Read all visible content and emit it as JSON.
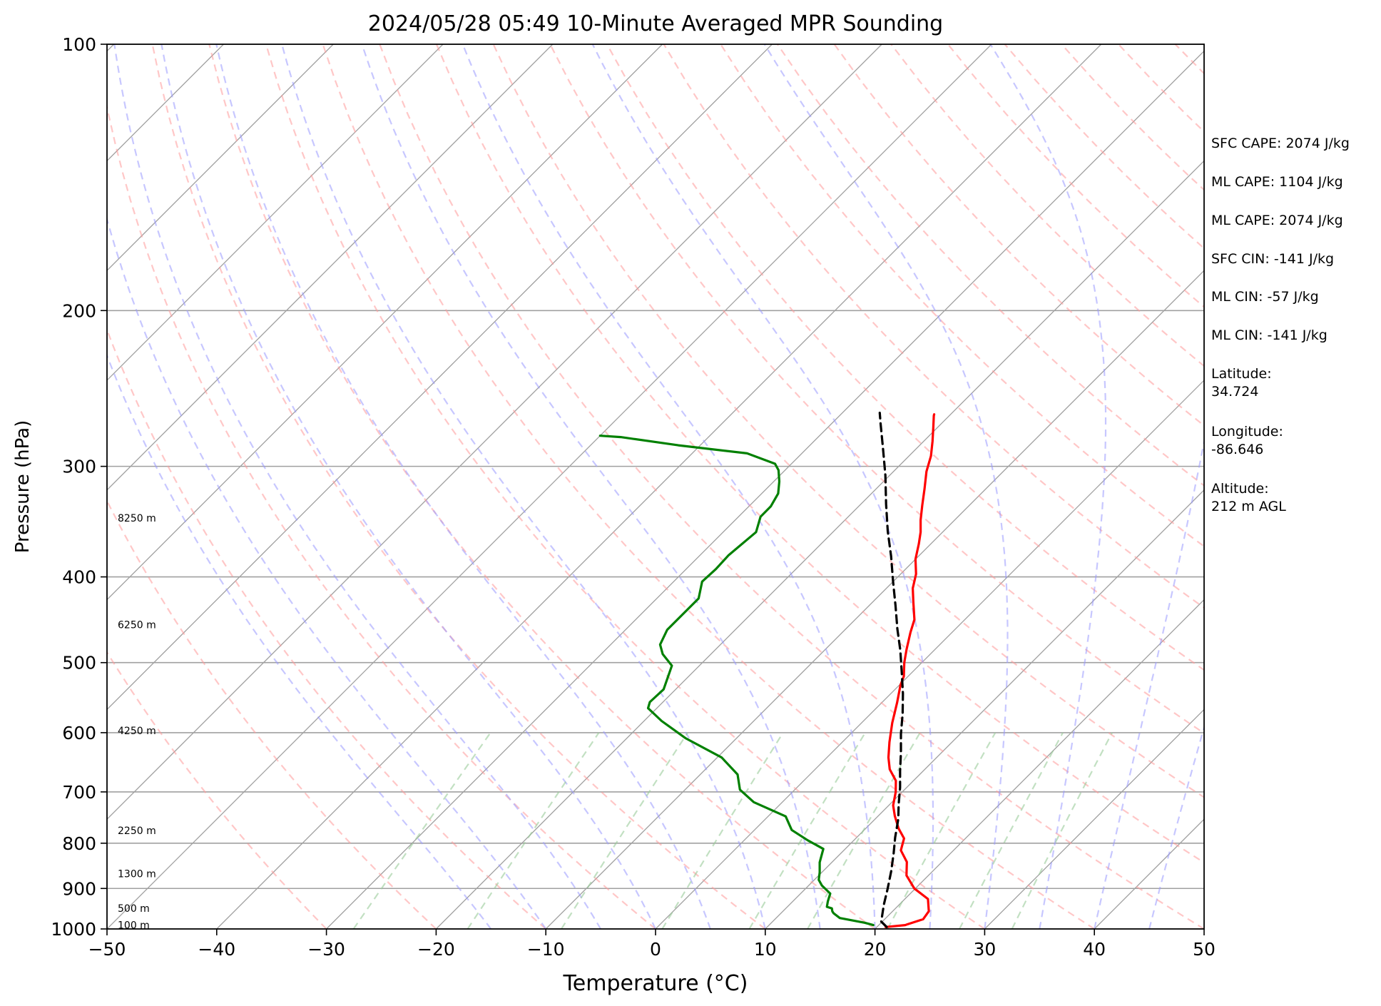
{
  "chart_data": {
    "type": "line",
    "title": "2024/05/28 05:49 10-Minute Averaged MPR Sounding",
    "xlabel": "Temperature (°C)",
    "ylabel": "Pressure (hPa)",
    "xlim": [
      -50,
      50
    ],
    "ylim": [
      1000,
      100
    ],
    "y_scale": "log",
    "skew": "skew-T",
    "grid": true,
    "x_ticks": [
      -50,
      -40,
      -30,
      -20,
      -10,
      0,
      10,
      20,
      30,
      40,
      50
    ],
    "x_tick_labels": [
      "−50",
      "−40",
      "−30",
      "−20",
      "−10",
      "0",
      "10",
      "20",
      "30",
      "40",
      "50"
    ],
    "y_ticks": [
      1000,
      900,
      800,
      700,
      600,
      500,
      400,
      300,
      200,
      100
    ],
    "y_tick_labels": [
      "1000",
      "900",
      "800",
      "700",
      "600",
      "500",
      "400",
      "300",
      "200",
      "100"
    ],
    "height_labels": [
      {
        "text": "100 m",
        "pressure": 990
      },
      {
        "text": "500 m",
        "pressure": 948
      },
      {
        "text": "1300 m",
        "pressure": 866
      },
      {
        "text": "2250 m",
        "pressure": 774
      },
      {
        "text": "4250 m",
        "pressure": 597
      },
      {
        "text": "6250 m",
        "pressure": 453
      },
      {
        "text": "8250 m",
        "pressure": 343
      }
    ],
    "colors": {
      "temperature": "#ff0000",
      "dewpoint": "#008000",
      "parcel": "#000000",
      "dry_adiabats": "#ff9999",
      "moist_adiabats": "#9999ff",
      "mixing_ratio": "#99cc99",
      "isotherms": "#a0a0a0",
      "isobars": "#a0a0a0"
    },
    "series": [
      {
        "style": "solid red",
        "points": [
          [
            20.8,
            995
          ],
          [
            22.4,
            990
          ],
          [
            23.5,
            975
          ],
          [
            23.3,
            955
          ],
          [
            22.1,
            925
          ],
          [
            19.9,
            900
          ],
          [
            18.0,
            870
          ],
          [
            16.8,
            840
          ],
          [
            15.2,
            815
          ],
          [
            14.4,
            790
          ],
          [
            13.0,
            770
          ],
          [
            11.5,
            745
          ],
          [
            10.4,
            725
          ],
          [
            9.4,
            700
          ],
          [
            8.4,
            680
          ],
          [
            6.8,
            660
          ],
          [
            5.6,
            640
          ],
          [
            4.3,
            615
          ],
          [
            2.8,
            585
          ],
          [
            1.4,
            555
          ],
          [
            0.1,
            530
          ],
          [
            -0.4,
            518
          ],
          [
            -1.6,
            500
          ],
          [
            -2.6,
            483
          ],
          [
            -3.8,
            462
          ],
          [
            -4.6,
            447
          ],
          [
            -6.3,
            427
          ],
          [
            -7.6,
            412
          ],
          [
            -8.6,
            397
          ],
          [
            -10.0,
            382
          ],
          [
            -11.1,
            367
          ],
          [
            -12.0,
            356
          ],
          [
            -13.1,
            345
          ],
          [
            -14.3,
            332
          ],
          [
            -15.6,
            318
          ],
          [
            -17.0,
            304
          ],
          [
            -18.0,
            292
          ],
          [
            -19.2,
            281
          ],
          [
            -20.4,
            271
          ],
          [
            -21.4,
            263
          ],
          [
            -21.5,
            262
          ]
        ]
      },
      {
        "style": "solid green",
        "points": [
          [
            19.5,
            990
          ],
          [
            18.5,
            984
          ],
          [
            15.8,
            972
          ],
          [
            14.8,
            960
          ],
          [
            14.5,
            955
          ],
          [
            14.2,
            948
          ],
          [
            13.6,
            944
          ],
          [
            13.2,
            931
          ],
          [
            12.7,
            912
          ],
          [
            11.2,
            893
          ],
          [
            10.4,
            880
          ],
          [
            9.8,
            863
          ],
          [
            8.9,
            841
          ],
          [
            8.0,
            812
          ],
          [
            5.8,
            794
          ],
          [
            3.4,
            773
          ],
          [
            1.6,
            746
          ],
          [
            -2.6,
            719
          ],
          [
            -5.0,
            696
          ],
          [
            -6.6,
            669
          ],
          [
            -9.6,
            640
          ],
          [
            -14.6,
            609
          ],
          [
            -18.4,
            582
          ],
          [
            -20.8,
            563
          ],
          [
            -21.2,
            554
          ],
          [
            -21.1,
            536
          ],
          [
            -22.5,
            504
          ],
          [
            -24.4,
            489
          ],
          [
            -25.5,
            477
          ],
          [
            -26.2,
            459
          ],
          [
            -26.2,
            440
          ],
          [
            -26.2,
            423
          ],
          [
            -27.4,
            405
          ],
          [
            -27.3,
            392
          ],
          [
            -27.4,
            378
          ],
          [
            -27.0,
            356
          ],
          [
            -28.0,
            342
          ],
          [
            -28.0,
            333
          ],
          [
            -28.5,
            322
          ],
          [
            -29.5,
            312
          ],
          [
            -30.6,
            303
          ],
          [
            -31.5,
            298
          ],
          [
            -35.0,
            290
          ],
          [
            -42.0,
            284
          ],
          [
            -48.0,
            278
          ],
          [
            -50.0,
            277
          ]
        ]
      },
      {
        "style": "dashed black",
        "points": [
          [
            20.9,
            995
          ],
          [
            19.9,
            981
          ],
          [
            18.6,
            939
          ],
          [
            17.5,
            901
          ],
          [
            16.2,
            860
          ],
          [
            14.8,
            821
          ],
          [
            13.5,
            788
          ],
          [
            12.1,
            751
          ],
          [
            10.8,
            723
          ],
          [
            9.4,
            692
          ],
          [
            7.9,
            663
          ],
          [
            6.3,
            632
          ],
          [
            4.6,
            602
          ],
          [
            2.9,
            571
          ],
          [
            1.1,
            542
          ],
          [
            -1.0,
            512
          ],
          [
            -3.1,
            484
          ],
          [
            -5.3,
            458
          ],
          [
            -7.6,
            431
          ],
          [
            -10.0,
            405
          ],
          [
            -12.5,
            379
          ],
          [
            -15.1,
            355
          ],
          [
            -17.7,
            331
          ],
          [
            -20.4,
            307
          ],
          [
            -23.1,
            286
          ],
          [
            -25.6,
            268
          ],
          [
            -26.6,
            261
          ]
        ]
      }
    ]
  },
  "sidebar": {
    "sfc_cape": "SFC CAPE: 2074 J/kg",
    "ml_cape_1": "ML CAPE: 1104 J/kg",
    "ml_cape_2": "ML CAPE: 2074 J/kg",
    "sfc_cin": "SFC CIN: -141 J/kg",
    "ml_cin_1": "ML CIN: -57 J/kg",
    "ml_cin_2": "ML CIN: -141 J/kg",
    "latitude_label": "Latitude:",
    "latitude_value": "34.724",
    "longitude_label": "Longitude:",
    "longitude_value": "-86.646",
    "altitude_label": "Altitude:",
    "altitude_value": "212 m AGL"
  }
}
